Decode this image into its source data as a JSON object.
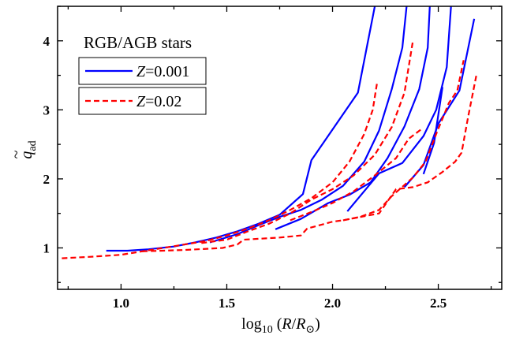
{
  "chart_data": {
    "type": "line",
    "title": "",
    "xlabel": {
      "pre": "log",
      "sub": "10",
      "mid": " (",
      "italic": "R",
      "slash": "/",
      "italic2": "R",
      "sun": "⊙",
      "post": ")"
    },
    "ylabel": {
      "accent": "~",
      "italic": "q",
      "sub": "ad"
    },
    "xlim": [
      0.7,
      2.8
    ],
    "ylim": [
      0.4,
      4.5
    ],
    "x_ticks": [
      1.0,
      1.5,
      2.0,
      2.5
    ],
    "x_tick_labels": [
      "1.0",
      "1.5",
      "2.0",
      "2.5"
    ],
    "y_ticks": [
      1,
      2,
      3,
      4
    ],
    "y_tick_labels": [
      "1",
      "2",
      "3",
      "4"
    ],
    "grid": false,
    "legend": {
      "title": "RGB/AGB stars",
      "placement": "top-left",
      "entries": [
        {
          "italic": "Z",
          "value": "=0.001",
          "color": "#0000ff",
          "dash": "solid"
        },
        {
          "italic": "Z",
          "value": "=0.02",
          "color": "#ff0000",
          "dash": "dashed"
        }
      ]
    },
    "series": [
      {
        "group": "Z=0.001",
        "color": "#0000ff",
        "dash": "solid",
        "points": [
          [
            0.93,
            0.96
          ],
          [
            1.03,
            0.96
          ],
          [
            1.13,
            0.98
          ],
          [
            1.25,
            1.02
          ],
          [
            1.35,
            1.08
          ],
          [
            1.45,
            1.15
          ],
          [
            1.55,
            1.24
          ],
          [
            1.65,
            1.35
          ],
          [
            1.75,
            1.48
          ],
          [
            1.86,
            1.78
          ],
          [
            1.9,
            2.27
          ],
          [
            2.12,
            3.25
          ],
          [
            2.2,
            4.5
          ]
        ]
      },
      {
        "group": "Z=0.001",
        "color": "#0000ff",
        "dash": "solid",
        "points": [
          [
            1.42,
            1.08
          ],
          [
            1.55,
            1.2
          ],
          [
            1.65,
            1.33
          ],
          [
            1.75,
            1.45
          ],
          [
            1.85,
            1.55
          ],
          [
            1.95,
            1.7
          ],
          [
            2.05,
            1.9
          ],
          [
            2.15,
            2.25
          ],
          [
            2.22,
            2.7
          ],
          [
            2.28,
            3.3
          ],
          [
            2.33,
            3.9
          ],
          [
            2.35,
            4.5
          ]
        ]
      },
      {
        "group": "Z=0.001",
        "color": "#0000ff",
        "dash": "solid",
        "points": [
          [
            1.73,
            1.27
          ],
          [
            1.85,
            1.42
          ],
          [
            1.98,
            1.65
          ],
          [
            2.08,
            1.77
          ],
          [
            2.18,
            1.95
          ],
          [
            2.26,
            2.3
          ],
          [
            2.34,
            2.76
          ],
          [
            2.41,
            3.3
          ],
          [
            2.45,
            3.9
          ],
          [
            2.46,
            4.5
          ]
        ]
      },
      {
        "group": "Z=0.001",
        "color": "#0000ff",
        "dash": "solid",
        "points": [
          [
            2.07,
            1.53
          ],
          [
            2.13,
            1.75
          ],
          [
            2.22,
            2.08
          ],
          [
            2.33,
            2.23
          ],
          [
            2.43,
            2.62
          ],
          [
            2.49,
            3.0
          ],
          [
            2.54,
            3.62
          ],
          [
            2.56,
            4.5
          ]
        ]
      },
      {
        "group": "Z=0.001",
        "color": "#0000ff",
        "dash": "solid",
        "points": [
          [
            2.34,
            1.88
          ],
          [
            2.43,
            2.2
          ],
          [
            2.5,
            2.8
          ],
          [
            2.6,
            3.28
          ],
          [
            2.67,
            4.32
          ]
        ]
      },
      {
        "group": "Z=0.001",
        "color": "#0000ff",
        "dash": "solid",
        "points": [
          [
            2.43,
            2.07
          ],
          [
            2.48,
            2.52
          ],
          [
            2.52,
            3.33
          ]
        ]
      },
      {
        "group": "Z=0.02",
        "color": "#ff0000",
        "dash": "dashed",
        "points": [
          [
            0.72,
            0.85
          ],
          [
            0.85,
            0.87
          ],
          [
            1.0,
            0.9
          ],
          [
            1.1,
            0.95
          ],
          [
            1.2,
            1.0
          ],
          [
            1.3,
            1.05
          ],
          [
            1.4,
            1.1
          ],
          [
            1.5,
            1.18
          ],
          [
            1.6,
            1.28
          ],
          [
            1.7,
            1.4
          ],
          [
            1.8,
            1.55
          ],
          [
            1.9,
            1.72
          ],
          [
            2.0,
            1.95
          ],
          [
            2.08,
            2.25
          ],
          [
            2.15,
            2.65
          ],
          [
            2.19,
            3.0
          ],
          [
            2.21,
            3.38
          ]
        ]
      },
      {
        "group": "Z=0.02",
        "color": "#ff0000",
        "dash": "dashed",
        "points": [
          [
            1.38,
            1.07
          ],
          [
            1.5,
            1.12
          ],
          [
            1.6,
            1.24
          ],
          [
            1.7,
            1.35
          ],
          [
            1.8,
            1.5
          ],
          [
            1.9,
            1.7
          ],
          [
            2.0,
            1.85
          ],
          [
            2.1,
            2.05
          ],
          [
            2.2,
            2.35
          ],
          [
            2.28,
            2.75
          ],
          [
            2.34,
            3.25
          ],
          [
            2.38,
            4.0
          ]
        ]
      },
      {
        "group": "Z=0.02",
        "color": "#ff0000",
        "dash": "dashed",
        "points": [
          [
            1.1,
            0.95
          ],
          [
            1.3,
            0.97
          ],
          [
            1.48,
            1.0
          ],
          [
            1.55,
            1.05
          ],
          [
            1.58,
            1.12
          ],
          [
            1.75,
            1.15
          ],
          [
            1.85,
            1.18
          ],
          [
            1.88,
            1.28
          ],
          [
            2.0,
            1.38
          ],
          [
            2.05,
            1.4
          ],
          [
            2.13,
            1.45
          ],
          [
            2.22,
            1.55
          ],
          [
            2.28,
            1.75
          ],
          [
            2.38,
            2.02
          ],
          [
            2.44,
            2.25
          ],
          [
            2.49,
            2.65
          ],
          [
            2.55,
            3.1
          ],
          [
            2.59,
            3.28
          ],
          [
            2.62,
            3.72
          ]
        ]
      },
      {
        "group": "Z=0.02",
        "color": "#ff0000",
        "dash": "dashed",
        "points": [
          [
            2.05,
            1.4
          ],
          [
            2.22,
            1.5
          ],
          [
            2.3,
            1.85
          ],
          [
            2.38,
            1.88
          ],
          [
            2.45,
            1.95
          ],
          [
            2.52,
            2.1
          ],
          [
            2.58,
            2.25
          ],
          [
            2.61,
            2.38
          ],
          [
            2.64,
            2.88
          ],
          [
            2.68,
            3.5
          ]
        ]
      },
      {
        "group": "Z=0.02",
        "color": "#ff0000",
        "dash": "dashed",
        "points": [
          [
            1.8,
            1.4
          ],
          [
            1.9,
            1.52
          ],
          [
            2.0,
            1.65
          ],
          [
            2.1,
            1.82
          ],
          [
            2.2,
            2.05
          ],
          [
            2.3,
            2.3
          ],
          [
            2.36,
            2.58
          ],
          [
            2.42,
            2.72
          ]
        ]
      }
    ]
  }
}
